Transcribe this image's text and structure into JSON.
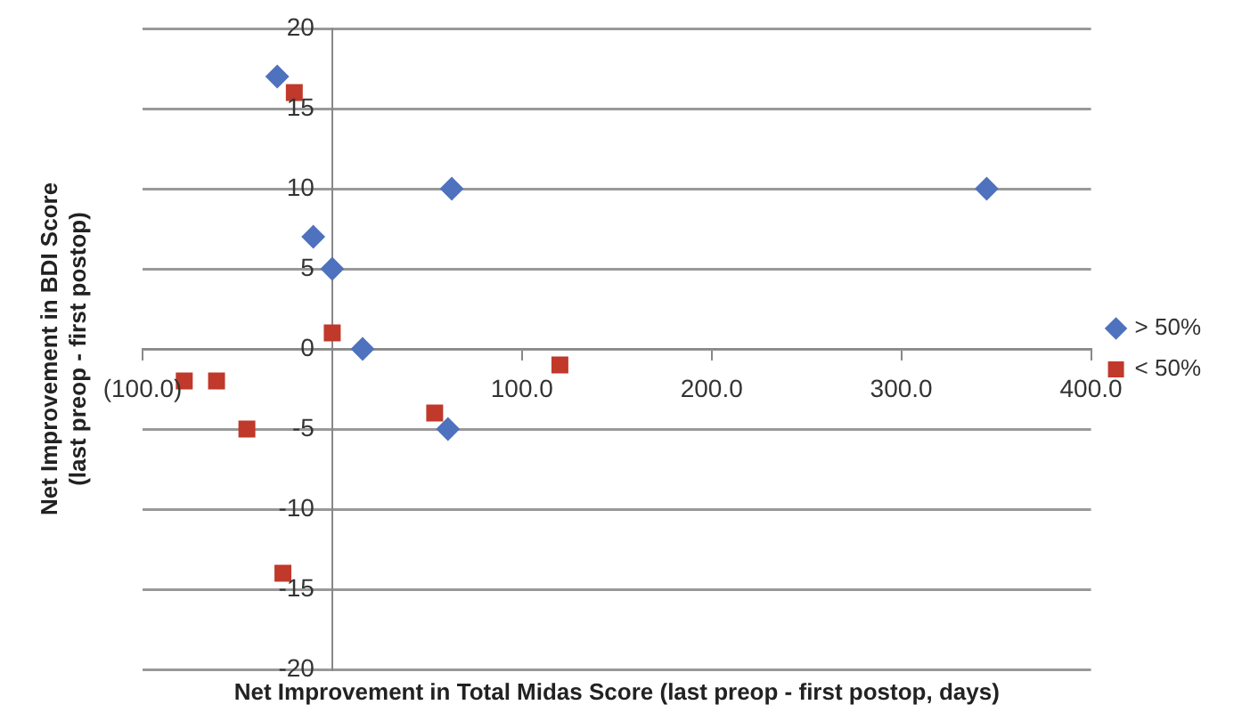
{
  "chart_data": {
    "type": "scatter",
    "xlabel": "Net Improvement in Total Midas Score (last preop - first postop, days)",
    "ylabel": "Net Improvement in BDI Score\n(last preop - first postop)",
    "xlim": [
      -100,
      400
    ],
    "xticks": [
      {
        "value": -100,
        "label": "(100.0)"
      },
      {
        "value": 0,
        "label": null
      },
      {
        "value": 100,
        "label": "100.0"
      },
      {
        "value": 200,
        "label": "200.0"
      },
      {
        "value": 300,
        "label": "300.0"
      },
      {
        "value": 400,
        "label": "400.0"
      }
    ],
    "ylim": [
      -20,
      20
    ],
    "yticks": [
      -20,
      -15,
      -10,
      -5,
      0,
      5,
      10,
      15,
      20
    ],
    "grid": "y",
    "legend": "right",
    "series": [
      {
        "name": "> 50%",
        "color": "#4f72be",
        "marker": "diamond",
        "x": [
          -29,
          -10,
          0,
          16,
          63,
          61,
          345
        ],
        "values": [
          17,
          7,
          5,
          0,
          10,
          -5,
          10
        ]
      },
      {
        "name": "< 50%",
        "color": "#c0392b",
        "marker": "square",
        "x": [
          -20,
          0,
          -78,
          -61,
          -45,
          -26,
          54,
          120
        ],
        "values": [
          16,
          1,
          -2,
          -2,
          -5,
          -14,
          -4,
          -1
        ]
      }
    ]
  }
}
